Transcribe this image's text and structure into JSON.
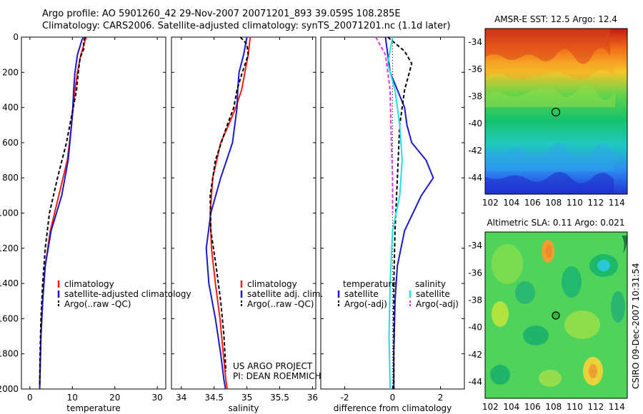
{
  "title": {
    "line1": "Argo profile: AO 5901260_42 29-Nov-2007 20071201_893 39.059S 108.285E",
    "line2": "Climatology: CARS2006. Satellite-adjusted climatology: synTS_20071201.nc (1.1d later)"
  },
  "project_label": [
    "US ARGO PROJECT",
    "PI: DEAN ROEMMICH"
  ],
  "vertical_label": "CSIRO 09-Dec-2007 10:31:54",
  "colors": {
    "climatology": "#ff1a1a",
    "satellite": "#1a1acc",
    "argo": "#000000",
    "salinity_satellite": "#22e0e0",
    "salinity_argo": "#e033e0"
  },
  "chart_data": [
    {
      "type": "line",
      "panel": "temperature",
      "xlabel": "temperature",
      "ylabel": "",
      "xlim": [
        -2,
        32
      ],
      "ylim": [
        2000,
        0
      ],
      "xticks": [
        0,
        10,
        20,
        30
      ],
      "yticks": [
        0,
        200,
        400,
        600,
        800,
        1000,
        1200,
        1400,
        1600,
        1800,
        2000
      ],
      "legend": [
        "climatology",
        "satellite-adjusted climatology",
        "Argo(..raw -QC)"
      ],
      "legend_placement": "bottom-left",
      "series": [
        {
          "name": "climatology",
          "color": "#ff1a1a",
          "x": [
            13.3,
            13.0,
            12.0,
            11.2,
            10.6,
            10.2,
            9.8,
            8.8,
            6.8,
            4.8,
            3.6,
            3.0,
            2.6,
            2.4,
            2.3
          ],
          "y": [
            0,
            20,
            100,
            200,
            300,
            400,
            500,
            700,
            900,
            1100,
            1300,
            1500,
            1700,
            1900,
            2000
          ]
        },
        {
          "name": "satellite-adjusted climatology",
          "color": "#1a1acc",
          "x": [
            12.6,
            12.2,
            11.2,
            10.6,
            10.3,
            10.1,
            9.8,
            9.0,
            7.5,
            5.0,
            3.6,
            3.0,
            2.6,
            2.4,
            2.3
          ],
          "y": [
            0,
            20,
            100,
            200,
            300,
            400,
            500,
            700,
            900,
            1100,
            1300,
            1500,
            1700,
            1900,
            2000
          ]
        },
        {
          "name": "Argo(..raw -QC)",
          "color": "#000000",
          "x": [
            13.0,
            12.6,
            12.8,
            11.8,
            11.4,
            11.0,
            10.2,
            8.6,
            6.5,
            4.6,
            3.6,
            3.0,
            2.6,
            2.4,
            2.3
          ],
          "y": [
            0,
            30,
            60,
            120,
            200,
            300,
            400,
            600,
            800,
            1000,
            1200,
            1400,
            1600,
            1800,
            1980
          ]
        }
      ]
    },
    {
      "type": "line",
      "panel": "salinity",
      "xlabel": "salinity",
      "ylabel": "",
      "xlim": [
        33.85,
        36.05
      ],
      "ylim": [
        2000,
        0
      ],
      "xticks": [
        34,
        34.5,
        35,
        35.5,
        36
      ],
      "yticks": [
        0,
        200,
        400,
        600,
        800,
        1000,
        1200,
        1400,
        1600,
        1800,
        2000
      ],
      "legend": [
        "climatology",
        "satellite adj. clim.",
        "Argo(..raw -QC)"
      ],
      "legend_placement": "bottom-right",
      "series": [
        {
          "name": "climatology",
          "color": "#ff1a1a",
          "x": [
            35.05,
            35.02,
            34.97,
            34.92,
            34.83,
            34.72,
            34.6,
            34.48,
            34.44,
            34.46,
            34.52,
            34.59,
            34.64,
            34.68,
            34.7
          ],
          "y": [
            0,
            100,
            200,
            300,
            400,
            500,
            600,
            800,
            1000,
            1200,
            1400,
            1600,
            1800,
            1950,
            2000
          ]
        },
        {
          "name": "satellite adj. clim.",
          "color": "#1a1acc",
          "x": [
            35.0,
            34.95,
            34.88,
            34.86,
            34.85,
            34.78,
            34.6,
            34.45,
            34.38,
            34.42,
            34.52,
            34.6,
            34.65,
            34.67,
            34.67
          ],
          "y": [
            0,
            100,
            200,
            300,
            400,
            600,
            800,
            1000,
            1200,
            1400,
            1600,
            1800,
            1950,
            1990,
            2000
          ]
        },
        {
          "name": "Argo(..raw -QC)",
          "color": "#000000",
          "x": [
            34.9,
            35.0,
            35.02,
            34.93,
            34.85,
            34.8,
            34.7,
            34.52,
            34.44,
            34.45,
            34.53,
            34.6,
            34.65,
            34.68
          ],
          "y": [
            0,
            40,
            100,
            200,
            300,
            400,
            500,
            700,
            900,
            1100,
            1300,
            1500,
            1700,
            1900
          ]
        }
      ]
    },
    {
      "type": "line",
      "panel": "difference",
      "xlabel": "difference from climatology",
      "ylabel": "",
      "xlim": [
        -3,
        3
      ],
      "ylim": [
        2000,
        0
      ],
      "xticks": [
        -2,
        0,
        2
      ],
      "yticks": [
        0,
        200,
        400,
        600,
        800,
        1000,
        1200,
        1400,
        1600,
        1800,
        2000
      ],
      "legend_groups": [
        {
          "header": "temperature",
          "entries": [
            "satellite",
            "Argo(-adj)"
          ]
        },
        {
          "header": "salinity",
          "entries": [
            "satellite",
            "Argo(-adj)"
          ]
        }
      ],
      "legend_placement": "bottom",
      "series": [
        {
          "name": "temperature satellite",
          "color": "#1a1acc",
          "x": [
            -0.3,
            -0.2,
            -0.1,
            0.2,
            0.5,
            0.6,
            0.8,
            1.4,
            1.7,
            1.2,
            0.5,
            0.2,
            0.1,
            0.05,
            0.05
          ],
          "y": [
            0,
            100,
            200,
            300,
            400,
            500,
            600,
            700,
            800,
            900,
            1100,
            1300,
            1500,
            1800,
            2000
          ]
        },
        {
          "name": "temperature Argo(-adj)",
          "color": "#000000",
          "x": [
            -0.2,
            0.5,
            0.8,
            0.5,
            0.3,
            0.2,
            0.1,
            0.05,
            0.05,
            0.05
          ],
          "y": [
            0,
            80,
            150,
            300,
            500,
            800,
            1100,
            1400,
            1700,
            2000
          ]
        },
        {
          "name": "salinity satellite",
          "color": "#22e0e0",
          "x": [
            0.0,
            -0.2,
            0.1,
            0.3,
            0.4,
            0.3,
            0.0,
            -0.1,
            -0.15,
            -0.1
          ],
          "y": [
            0,
            150,
            300,
            500,
            700,
            900,
            1100,
            1400,
            1700,
            2000
          ]
        },
        {
          "name": "salinity Argo(-adj)",
          "color": "#e033e0",
          "x": [
            -0.7,
            -0.3,
            -0.1,
            -0.05,
            0.0,
            0.0
          ],
          "y": [
            0,
            100,
            300,
            600,
            800,
            1000
          ]
        }
      ]
    },
    {
      "type": "heatmap",
      "panel": "sst-map",
      "title": "AMSR-E SST: 12.5 Argo: 12.4",
      "xlim": [
        101.5,
        115
      ],
      "ylim": [
        -45.2,
        -33
      ],
      "xticks": [
        102,
        104,
        106,
        108,
        110,
        112,
        114
      ],
      "yticks": [
        -34,
        -36,
        -38,
        -40,
        -42,
        -44
      ],
      "marker": {
        "lon": 108.285,
        "lat": -39.059
      }
    },
    {
      "type": "heatmap",
      "panel": "sla-map",
      "title": "Altimetric SLA: 0.11 Argo: 0.021",
      "xlim": [
        101.5,
        115
      ],
      "ylim": [
        -45.2,
        -33
      ],
      "xticks": [
        102,
        104,
        106,
        108,
        110,
        112,
        114
      ],
      "yticks": [
        -34,
        -36,
        -38,
        -40,
        -42,
        -44
      ],
      "marker": {
        "lon": 108.285,
        "lat": -39.059
      }
    }
  ]
}
